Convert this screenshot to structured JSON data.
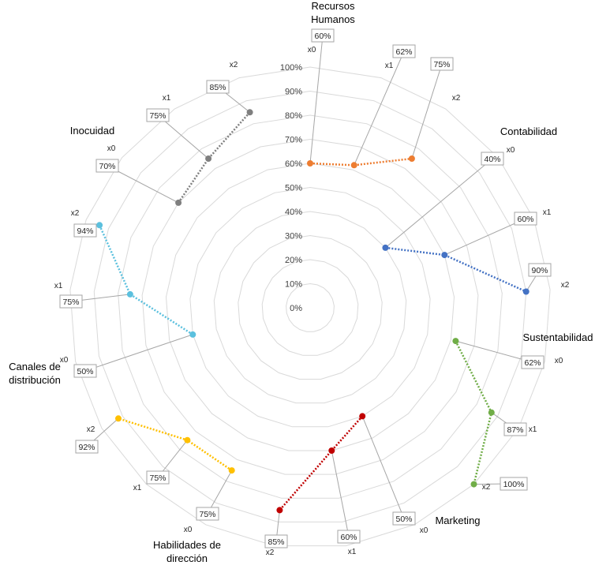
{
  "chart_data": {
    "type": "radar",
    "ticks": [
      "0%",
      "10%",
      "20%",
      "30%",
      "40%",
      "50%",
      "60%",
      "70%",
      "80%",
      "90%",
      "100%"
    ],
    "rlim": [
      0,
      100
    ],
    "grid": true,
    "series": [
      {
        "category_lines": [
          "Recursos",
          "Humanos"
        ],
        "color": "#ED7D31",
        "points": [
          {
            "x": "x0",
            "value": 60,
            "label": "60%"
          },
          {
            "x": "x1",
            "value": 62,
            "label": "62%"
          },
          {
            "x": "x2",
            "value": 75,
            "label": "75%"
          }
        ]
      },
      {
        "category_lines": [
          "Contabilidad"
        ],
        "color": "#4472C4",
        "points": [
          {
            "x": "x0",
            "value": 40,
            "label": "40%"
          },
          {
            "x": "x1",
            "value": 60,
            "label": "60%"
          },
          {
            "x": "x2",
            "value": 90,
            "label": "90%"
          }
        ]
      },
      {
        "category_lines": [
          "Sustentabilidad"
        ],
        "color": "#70AD47",
        "points": [
          {
            "x": "x0",
            "value": 62,
            "label": "62%"
          },
          {
            "x": "x1",
            "value": 87,
            "label": "87%"
          },
          {
            "x": "x2",
            "value": 100,
            "label": "100%"
          }
        ]
      },
      {
        "category_lines": [
          "Marketing"
        ],
        "color": "#C00000",
        "points": [
          {
            "x": "x0",
            "value": 50,
            "label": "50%"
          },
          {
            "x": "x1",
            "value": 60,
            "label": "60%"
          },
          {
            "x": "x2",
            "value": 85,
            "label": "85%"
          }
        ]
      },
      {
        "category_lines": [
          "Habilidades de",
          "dirección"
        ],
        "color": "#FFC000",
        "points": [
          {
            "x": "x0",
            "value": 75,
            "label": "75%"
          },
          {
            "x": "x1",
            "value": 75,
            "label": "75%"
          },
          {
            "x": "x2",
            "value": 92,
            "label": "92%"
          }
        ]
      },
      {
        "category_lines": [
          "Canales de",
          "distribución"
        ],
        "color": "#5BC0DE",
        "points": [
          {
            "x": "x0",
            "value": 50,
            "label": "50%"
          },
          {
            "x": "x1",
            "value": 75,
            "label": "75%"
          },
          {
            "x": "x2",
            "value": 94,
            "label": "94%"
          }
        ]
      },
      {
        "category_lines": [
          "Inocuidad"
        ],
        "color": "#7F7F7F",
        "points": [
          {
            "x": "x0",
            "value": 70,
            "label": "70%"
          },
          {
            "x": "x1",
            "value": 75,
            "label": "75%"
          },
          {
            "x": "x2",
            "value": 85,
            "label": "85%"
          }
        ]
      }
    ]
  }
}
